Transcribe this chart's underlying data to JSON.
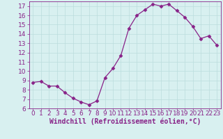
{
  "x": [
    0,
    1,
    2,
    3,
    4,
    5,
    6,
    7,
    8,
    9,
    10,
    11,
    12,
    13,
    14,
    15,
    16,
    17,
    18,
    19,
    20,
    21,
    22,
    23
  ],
  "y": [
    8.8,
    8.9,
    8.4,
    8.4,
    7.7,
    7.1,
    6.7,
    6.4,
    6.8,
    9.3,
    10.3,
    11.7,
    14.6,
    16.0,
    16.6,
    17.2,
    17.0,
    17.2,
    16.5,
    15.8,
    14.8,
    13.5,
    13.8,
    12.8
  ],
  "line_color": "#882288",
  "marker": "D",
  "marker_size": 2.5,
  "bg_color": "#d8f0f0",
  "grid_color": "#bbdddd",
  "xlabel": "Windchill (Refroidissement éolien,°C)",
  "xlabel_color": "#882288",
  "tick_color": "#882288",
  "spine_color": "#882288",
  "ylim": [
    6,
    17.5
  ],
  "xlim": [
    -0.5,
    23.5
  ],
  "yticks": [
    6,
    7,
    8,
    9,
    10,
    11,
    12,
    13,
    14,
    15,
    16,
    17
  ],
  "xticks": [
    0,
    1,
    2,
    3,
    4,
    5,
    6,
    7,
    8,
    9,
    10,
    11,
    12,
    13,
    14,
    15,
    16,
    17,
    18,
    19,
    20,
    21,
    22,
    23
  ],
  "tick_fontsize": 6.5,
  "xlabel_fontsize": 7.0,
  "linewidth": 0.9
}
